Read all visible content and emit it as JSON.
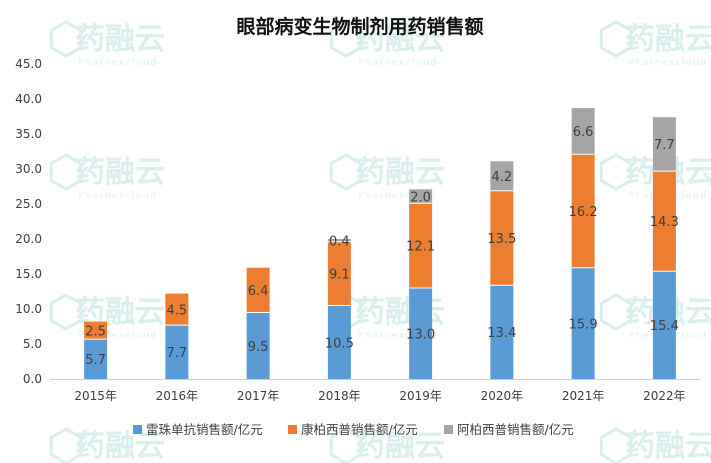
{
  "watermark": {
    "brand": "药融云",
    "sub": "Pharnexcloud",
    "color": "#bfe3dd"
  },
  "chart_data": {
    "type": "bar",
    "stacked": true,
    "title": "眼部病变生物制剂用药销售额",
    "categories": [
      "2015年",
      "2016年",
      "2017年",
      "2018年",
      "2019年",
      "2020年",
      "2021年",
      "2022年"
    ],
    "series": [
      {
        "name": "雷珠单抗销售额/亿元",
        "color": "#5b9bd5",
        "values": [
          5.7,
          7.7,
          9.5,
          10.5,
          13.0,
          13.4,
          15.9,
          15.4
        ]
      },
      {
        "name": "康柏西普销售额/亿元",
        "color": "#ed7d31",
        "values": [
          2.5,
          4.5,
          6.4,
          9.1,
          12.1,
          13.5,
          16.2,
          14.3
        ]
      },
      {
        "name": "阿柏西普销售额/亿元",
        "color": "#a5a5a5",
        "values": [
          null,
          null,
          null,
          0.4,
          2.0,
          4.2,
          6.6,
          7.7
        ]
      }
    ],
    "data_labels": [
      [
        "5.7",
        "7.7",
        "9.5",
        "10.5",
        "13.0",
        "13.4",
        "15.9",
        "15.4"
      ],
      [
        "2.5",
        "4.5",
        "6.4",
        "9.1",
        "12.1",
        "13.5",
        "16.2",
        "14.3"
      ],
      [
        "",
        "",
        "",
        "0.4",
        "2.0",
        "4.2",
        "6.6",
        "7.7"
      ]
    ],
    "ylim": [
      0,
      45
    ],
    "yticks": [
      "0.0",
      "5.0",
      "10.0",
      "15.0",
      "20.0",
      "25.0",
      "30.0",
      "35.0",
      "40.0",
      "45.0"
    ],
    "grid": false,
    "legend_position": "bottom"
  }
}
